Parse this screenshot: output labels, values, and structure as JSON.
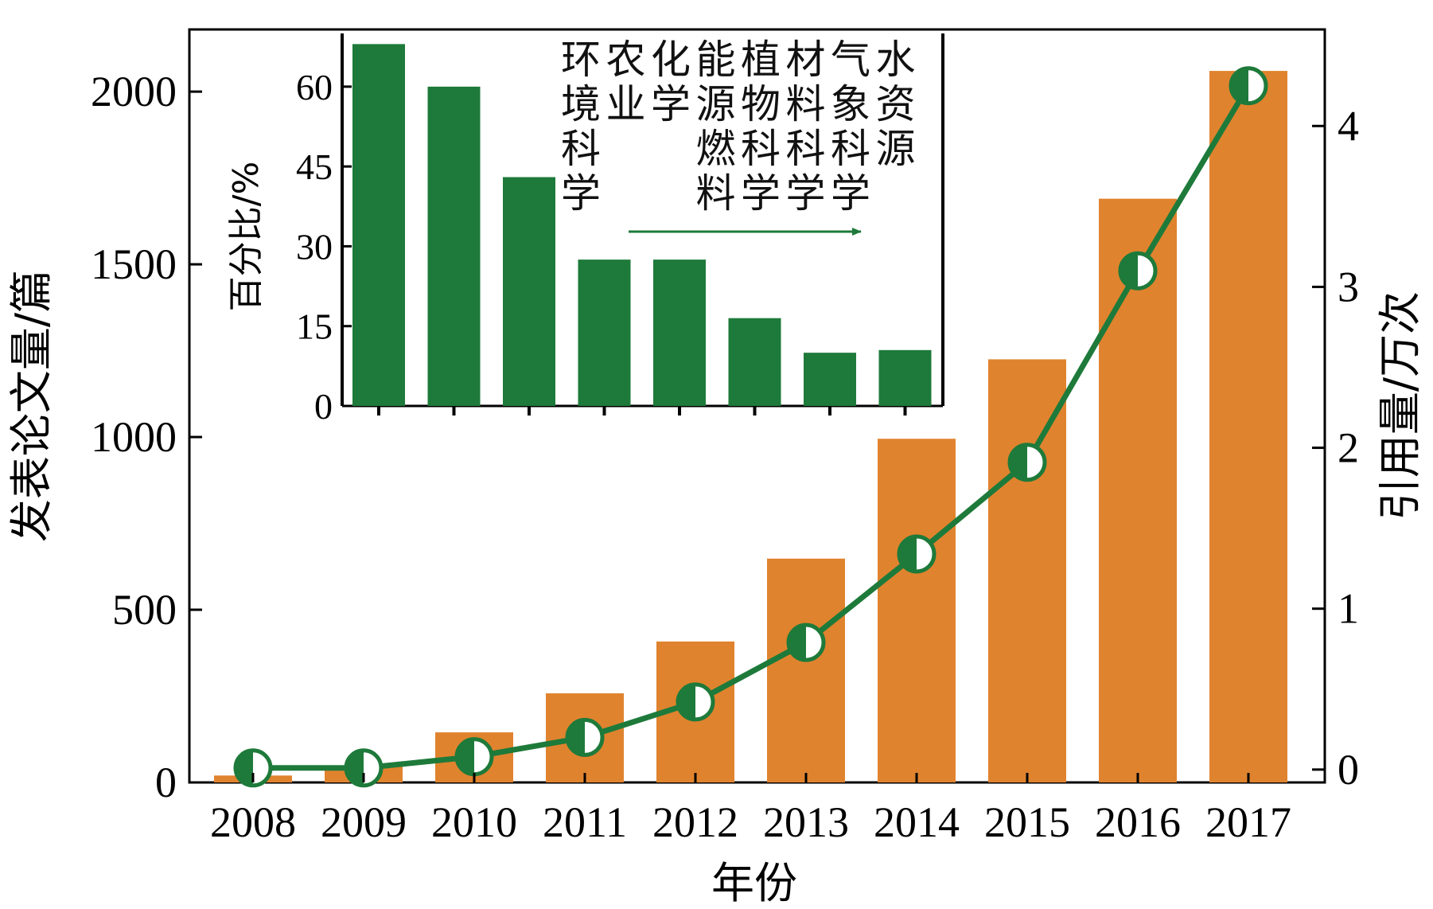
{
  "chart_data": [
    {
      "type": "bar+line",
      "title": "",
      "xlabel": "年份",
      "ylabel_left": "发表论文量/篇",
      "ylabel_right": "引用量/万次",
      "categories": [
        "2008",
        "2009",
        "2010",
        "2011",
        "2012",
        "2013",
        "2014",
        "2015",
        "2016",
        "2017"
      ],
      "ylim_left": [
        0,
        2180
      ],
      "yticks_left": [
        "0",
        "500",
        "1000",
        "1500",
        "2000"
      ],
      "ylim_right": [
        -0.08,
        4.6
      ],
      "yticks_right": [
        "0",
        "1",
        "2",
        "3",
        "4"
      ],
      "series": [
        {
          "axis": "left",
          "type": "bar",
          "color": "#E0832E",
          "values": [
            20,
            48,
            145,
            258,
            408,
            648,
            995,
            1225,
            1690,
            2060
          ]
        },
        {
          "axis": "right",
          "type": "line",
          "color": "#1E7A3A",
          "marker": "half-filled circle",
          "values": [
            0.01,
            0.01,
            0.08,
            0.2,
            0.42,
            0.79,
            1.34,
            1.91,
            3.1,
            4.25
          ]
        }
      ],
      "grid": false
    },
    {
      "type": "bar",
      "inset": true,
      "ylabel": "百分比/%",
      "ylim": [
        0,
        70
      ],
      "yticks": [
        "0",
        "15",
        "30",
        "45",
        "60"
      ],
      "color": "#1E7A3A",
      "categories": [
        "环境科学",
        "农业",
        "化学",
        "能源燃料",
        "植物科学",
        "材料科学",
        "气象科学",
        "水资源"
      ],
      "values": [
        68,
        60,
        43,
        27.5,
        27.5,
        16.5,
        10,
        10.5
      ],
      "arrow": "right"
    }
  ]
}
